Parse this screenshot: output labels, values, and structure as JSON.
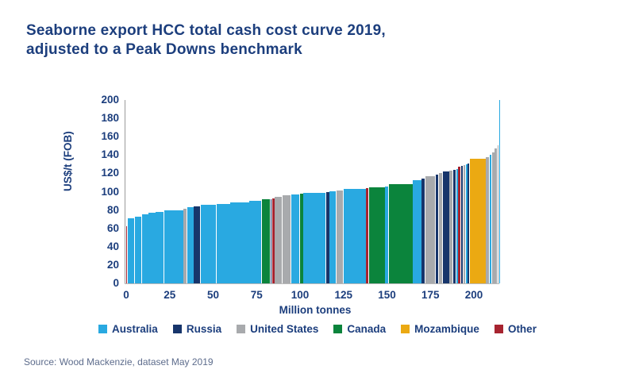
{
  "title": {
    "line1": "Seaborne export HCC total cash cost curve 2019,",
    "line2": "adjusted to a Peak Downs benchmark"
  },
  "source": "Source: Wood Mackenzie, dataset May 2019",
  "chart_data": {
    "type": "bar",
    "subtype": "cost-curve",
    "title": "Seaborne export HCC total cash cost curve 2019, adjusted to a Peak Downs benchmark",
    "xlabel": "Million tonnes",
    "ylabel": "US$/t  (FOB)",
    "xlim": [
      0,
      216
    ],
    "ylim": [
      0,
      200
    ],
    "x_ticks": [
      0,
      25,
      50,
      75,
      100,
      125,
      150,
      175,
      200
    ],
    "y_ticks": [
      0,
      20,
      40,
      60,
      80,
      100,
      120,
      140,
      160,
      180,
      200
    ],
    "grid": false,
    "legend_position": "bottom",
    "colors": {
      "Australia": "#29A9E1",
      "Russia": "#17356B",
      "United States": "#A8AAAD",
      "Canada": "#0B843C",
      "Mozambique": "#EBA912",
      "Other": "#A72430"
    },
    "legend": [
      "Australia",
      "Russia",
      "United States",
      "Canada",
      "Mozambique",
      "Other"
    ],
    "bars": [
      {
        "from": 0,
        "to": 1,
        "value": 62,
        "country": "Other"
      },
      {
        "from": 1,
        "to": 5,
        "value": 71,
        "country": "Australia"
      },
      {
        "from": 5,
        "to": 9,
        "value": 73,
        "country": "Australia"
      },
      {
        "from": 9,
        "to": 13,
        "value": 75,
        "country": "Australia"
      },
      {
        "from": 13,
        "to": 17,
        "value": 77,
        "country": "Australia"
      },
      {
        "from": 17,
        "to": 22,
        "value": 78,
        "country": "Australia"
      },
      {
        "from": 22,
        "to": 33,
        "value": 80,
        "country": "Australia"
      },
      {
        "from": 33,
        "to": 35,
        "value": 81,
        "country": "United States"
      },
      {
        "from": 35,
        "to": 39,
        "value": 83,
        "country": "Australia"
      },
      {
        "from": 39,
        "to": 43,
        "value": 84,
        "country": "Russia"
      },
      {
        "from": 43,
        "to": 52,
        "value": 86,
        "country": "Australia"
      },
      {
        "from": 52,
        "to": 60,
        "value": 87,
        "country": "Australia"
      },
      {
        "from": 60,
        "to": 71,
        "value": 88,
        "country": "Australia"
      },
      {
        "from": 71,
        "to": 78,
        "value": 90,
        "country": "Australia"
      },
      {
        "from": 78,
        "to": 83,
        "value": 92,
        "country": "Canada"
      },
      {
        "from": 83,
        "to": 84,
        "value": 92,
        "country": "Russia"
      },
      {
        "from": 84,
        "to": 85.5,
        "value": 93,
        "country": "Other"
      },
      {
        "from": 85.5,
        "to": 90,
        "value": 94,
        "country": "United States"
      },
      {
        "from": 90,
        "to": 95,
        "value": 96,
        "country": "United States"
      },
      {
        "from": 95,
        "to": 100,
        "value": 97,
        "country": "Australia"
      },
      {
        "from": 100,
        "to": 102,
        "value": 97.5,
        "country": "Canada"
      },
      {
        "from": 102,
        "to": 115,
        "value": 99,
        "country": "Australia"
      },
      {
        "from": 115,
        "to": 117,
        "value": 100,
        "country": "Russia"
      },
      {
        "from": 117,
        "to": 121,
        "value": 100.5,
        "country": "Australia"
      },
      {
        "from": 121,
        "to": 125,
        "value": 101.5,
        "country": "United States"
      },
      {
        "from": 125,
        "to": 138,
        "value": 103,
        "country": "Australia"
      },
      {
        "from": 138,
        "to": 139.5,
        "value": 104,
        "country": "Other"
      },
      {
        "from": 139.5,
        "to": 149,
        "value": 105,
        "country": "Canada"
      },
      {
        "from": 149,
        "to": 151,
        "value": 106,
        "country": "Australia"
      },
      {
        "from": 151,
        "to": 165,
        "value": 108,
        "country": "Canada"
      },
      {
        "from": 165,
        "to": 170,
        "value": 113,
        "country": "Australia"
      },
      {
        "from": 170,
        "to": 172,
        "value": 114,
        "country": "Russia"
      },
      {
        "from": 172,
        "to": 178,
        "value": 117,
        "country": "United States"
      },
      {
        "from": 178,
        "to": 180,
        "value": 119,
        "country": "Russia"
      },
      {
        "from": 180,
        "to": 182,
        "value": 120,
        "country": "United States"
      },
      {
        "from": 182,
        "to": 186,
        "value": 122,
        "country": "Russia"
      },
      {
        "from": 186,
        "to": 188,
        "value": 123,
        "country": "United States"
      },
      {
        "from": 188,
        "to": 190,
        "value": 124,
        "country": "Russia"
      },
      {
        "from": 190,
        "to": 191,
        "value": 125,
        "country": "Australia"
      },
      {
        "from": 191,
        "to": 192.5,
        "value": 127,
        "country": "Other"
      },
      {
        "from": 192.5,
        "to": 194,
        "value": 128,
        "country": "Russia"
      },
      {
        "from": 194,
        "to": 195.5,
        "value": 129,
        "country": "United States"
      },
      {
        "from": 195.5,
        "to": 196.5,
        "value": 130,
        "country": "Australia"
      },
      {
        "from": 196.5,
        "to": 197.5,
        "value": 131,
        "country": "Russia"
      },
      {
        "from": 197.5,
        "to": 207,
        "value": 136,
        "country": "Mozambique"
      },
      {
        "from": 207,
        "to": 209,
        "value": 138,
        "country": "United States"
      },
      {
        "from": 209,
        "to": 210.5,
        "value": 140,
        "country": "Australia"
      },
      {
        "from": 210.5,
        "to": 212,
        "value": 143,
        "country": "United States"
      },
      {
        "from": 212,
        "to": 213.5,
        "value": 147,
        "country": "United States"
      },
      {
        "from": 213.5,
        "to": 214.5,
        "value": 151,
        "country": "United States"
      },
      {
        "from": 214.5,
        "to": 215.5,
        "value": 200,
        "country": "Australia"
      }
    ]
  }
}
